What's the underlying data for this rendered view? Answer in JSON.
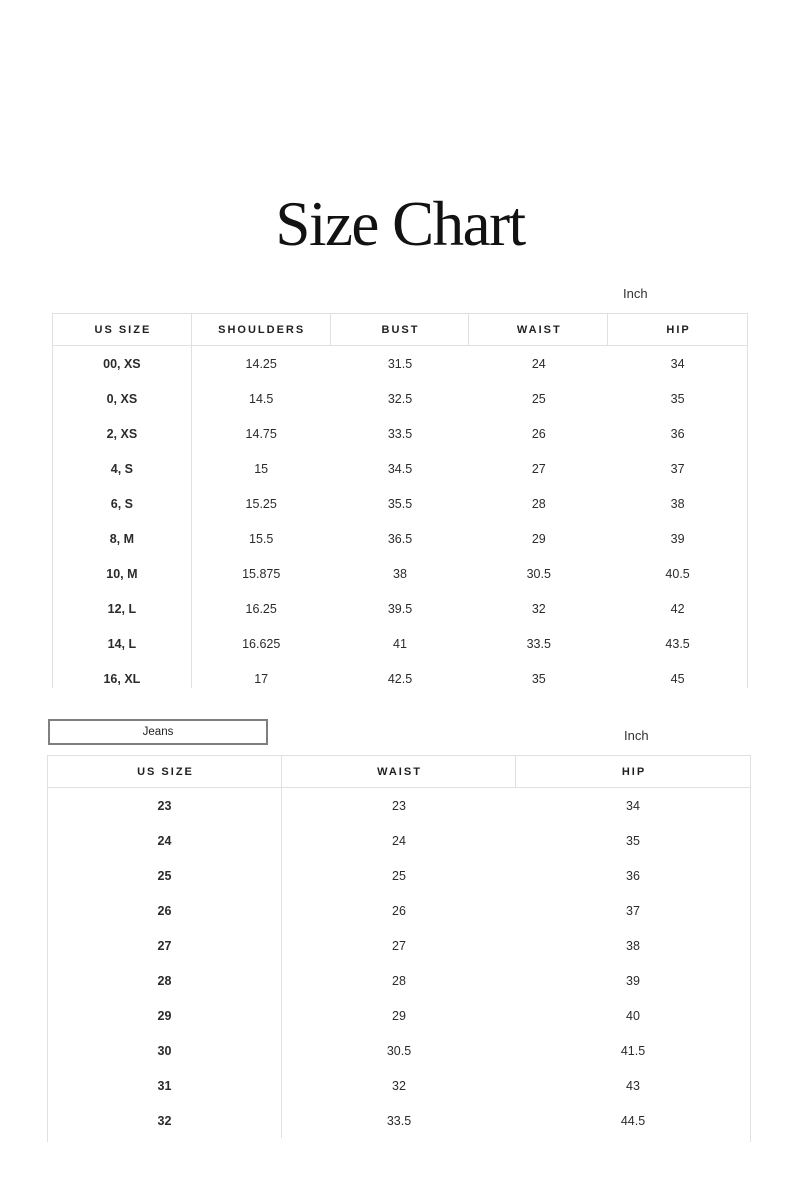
{
  "page": {
    "title": "Size Chart"
  },
  "apparel_table": {
    "unit_label": "Inch",
    "headers": [
      "US SIZE",
      "SHOULDERS",
      "BUST",
      "WAIST",
      "HIP"
    ],
    "rows": [
      [
        "00, XS",
        "14.25",
        "31.5",
        "24",
        "34"
      ],
      [
        "0, XS",
        "14.5",
        "32.5",
        "25",
        "35"
      ],
      [
        "2, XS",
        "14.75",
        "33.5",
        "26",
        "36"
      ],
      [
        "4, S",
        "15",
        "34.5",
        "27",
        "37"
      ],
      [
        "6, S",
        "15.25",
        "35.5",
        "28",
        "38"
      ],
      [
        "8, M",
        "15.5",
        "36.5",
        "29",
        "39"
      ],
      [
        "10, M",
        "15.875",
        "38",
        "30.5",
        "40.5"
      ],
      [
        "12, L",
        "16.25",
        "39.5",
        "32",
        "42"
      ],
      [
        "14, L",
        "16.625",
        "41",
        "33.5",
        "43.5"
      ],
      [
        "16, XL",
        "17",
        "42.5",
        "35",
        "45"
      ]
    ]
  },
  "jeans_table": {
    "button_label": "Jeans",
    "unit_label": "Inch",
    "headers": [
      "US SIZE",
      "WAIST",
      "HIP"
    ],
    "rows": [
      [
        "23",
        "23",
        "34"
      ],
      [
        "24",
        "24",
        "35"
      ],
      [
        "25",
        "25",
        "36"
      ],
      [
        "26",
        "26",
        "37"
      ],
      [
        "27",
        "27",
        "38"
      ],
      [
        "28",
        "28",
        "39"
      ],
      [
        "29",
        "29",
        "40"
      ],
      [
        "30",
        "30.5",
        "41.5"
      ],
      [
        "31",
        "32",
        "43"
      ],
      [
        "32",
        "33.5",
        "44.5"
      ]
    ]
  },
  "colors": {
    "background": "#ffffff",
    "text": "#222222",
    "table_border": "#e0e0e0",
    "button_border": "#7f7f7f"
  }
}
